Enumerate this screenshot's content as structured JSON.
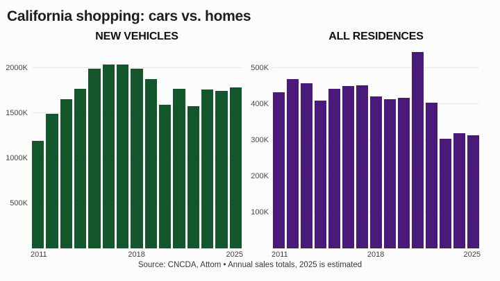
{
  "page": {
    "title": "California shopping: cars vs. homes",
    "source_note": "Source: CNCDA, Attom • Annual sales totals, 2025 is estimated",
    "background": "#fcfcfc"
  },
  "chart_data": [
    {
      "type": "bar",
      "title": "NEW VEHICLES",
      "color": "#14562b",
      "unit": "thousands of sales (K)",
      "categories": [
        "2011",
        "2012",
        "2013",
        "2014",
        "2015",
        "2016",
        "2017",
        "2018",
        "2019",
        "2020",
        "2021",
        "2022",
        "2023",
        "2024",
        "2025"
      ],
      "values": [
        1190,
        1490,
        1655,
        1770,
        1990,
        2035,
        2035,
        1990,
        1880,
        1590,
        1770,
        1575,
        1760,
        1745,
        1785
      ],
      "ylim": [
        0,
        2100
      ],
      "yticks": [
        500,
        1000,
        1500,
        2000
      ],
      "ytick_labels": [
        "500K",
        "1000K",
        "1500K",
        "2000K"
      ],
      "xtick_labels": [
        "2011",
        "2018",
        "2025"
      ],
      "grid": true,
      "legend": "none"
    },
    {
      "type": "bar",
      "title": "ALL RESIDENCES",
      "color": "#4a1a7a",
      "unit": "thousands of sales (K)",
      "categories": [
        "2011",
        "2012",
        "2013",
        "2014",
        "2015",
        "2016",
        "2017",
        "2018",
        "2019",
        "2020",
        "2021",
        "2022",
        "2023",
        "2024",
        "2025"
      ],
      "values": [
        433,
        469,
        458,
        410,
        443,
        450,
        452,
        421,
        413,
        417,
        545,
        404,
        305,
        320,
        313
      ],
      "ylim": [
        0,
        560
      ],
      "yticks": [
        100,
        200,
        300,
        400,
        500
      ],
      "ytick_labels": [
        "100K",
        "200K",
        "300K",
        "400K",
        "500K"
      ],
      "xtick_labels": [
        "2011",
        "2018",
        "2025"
      ],
      "grid": true,
      "legend": "none"
    }
  ]
}
